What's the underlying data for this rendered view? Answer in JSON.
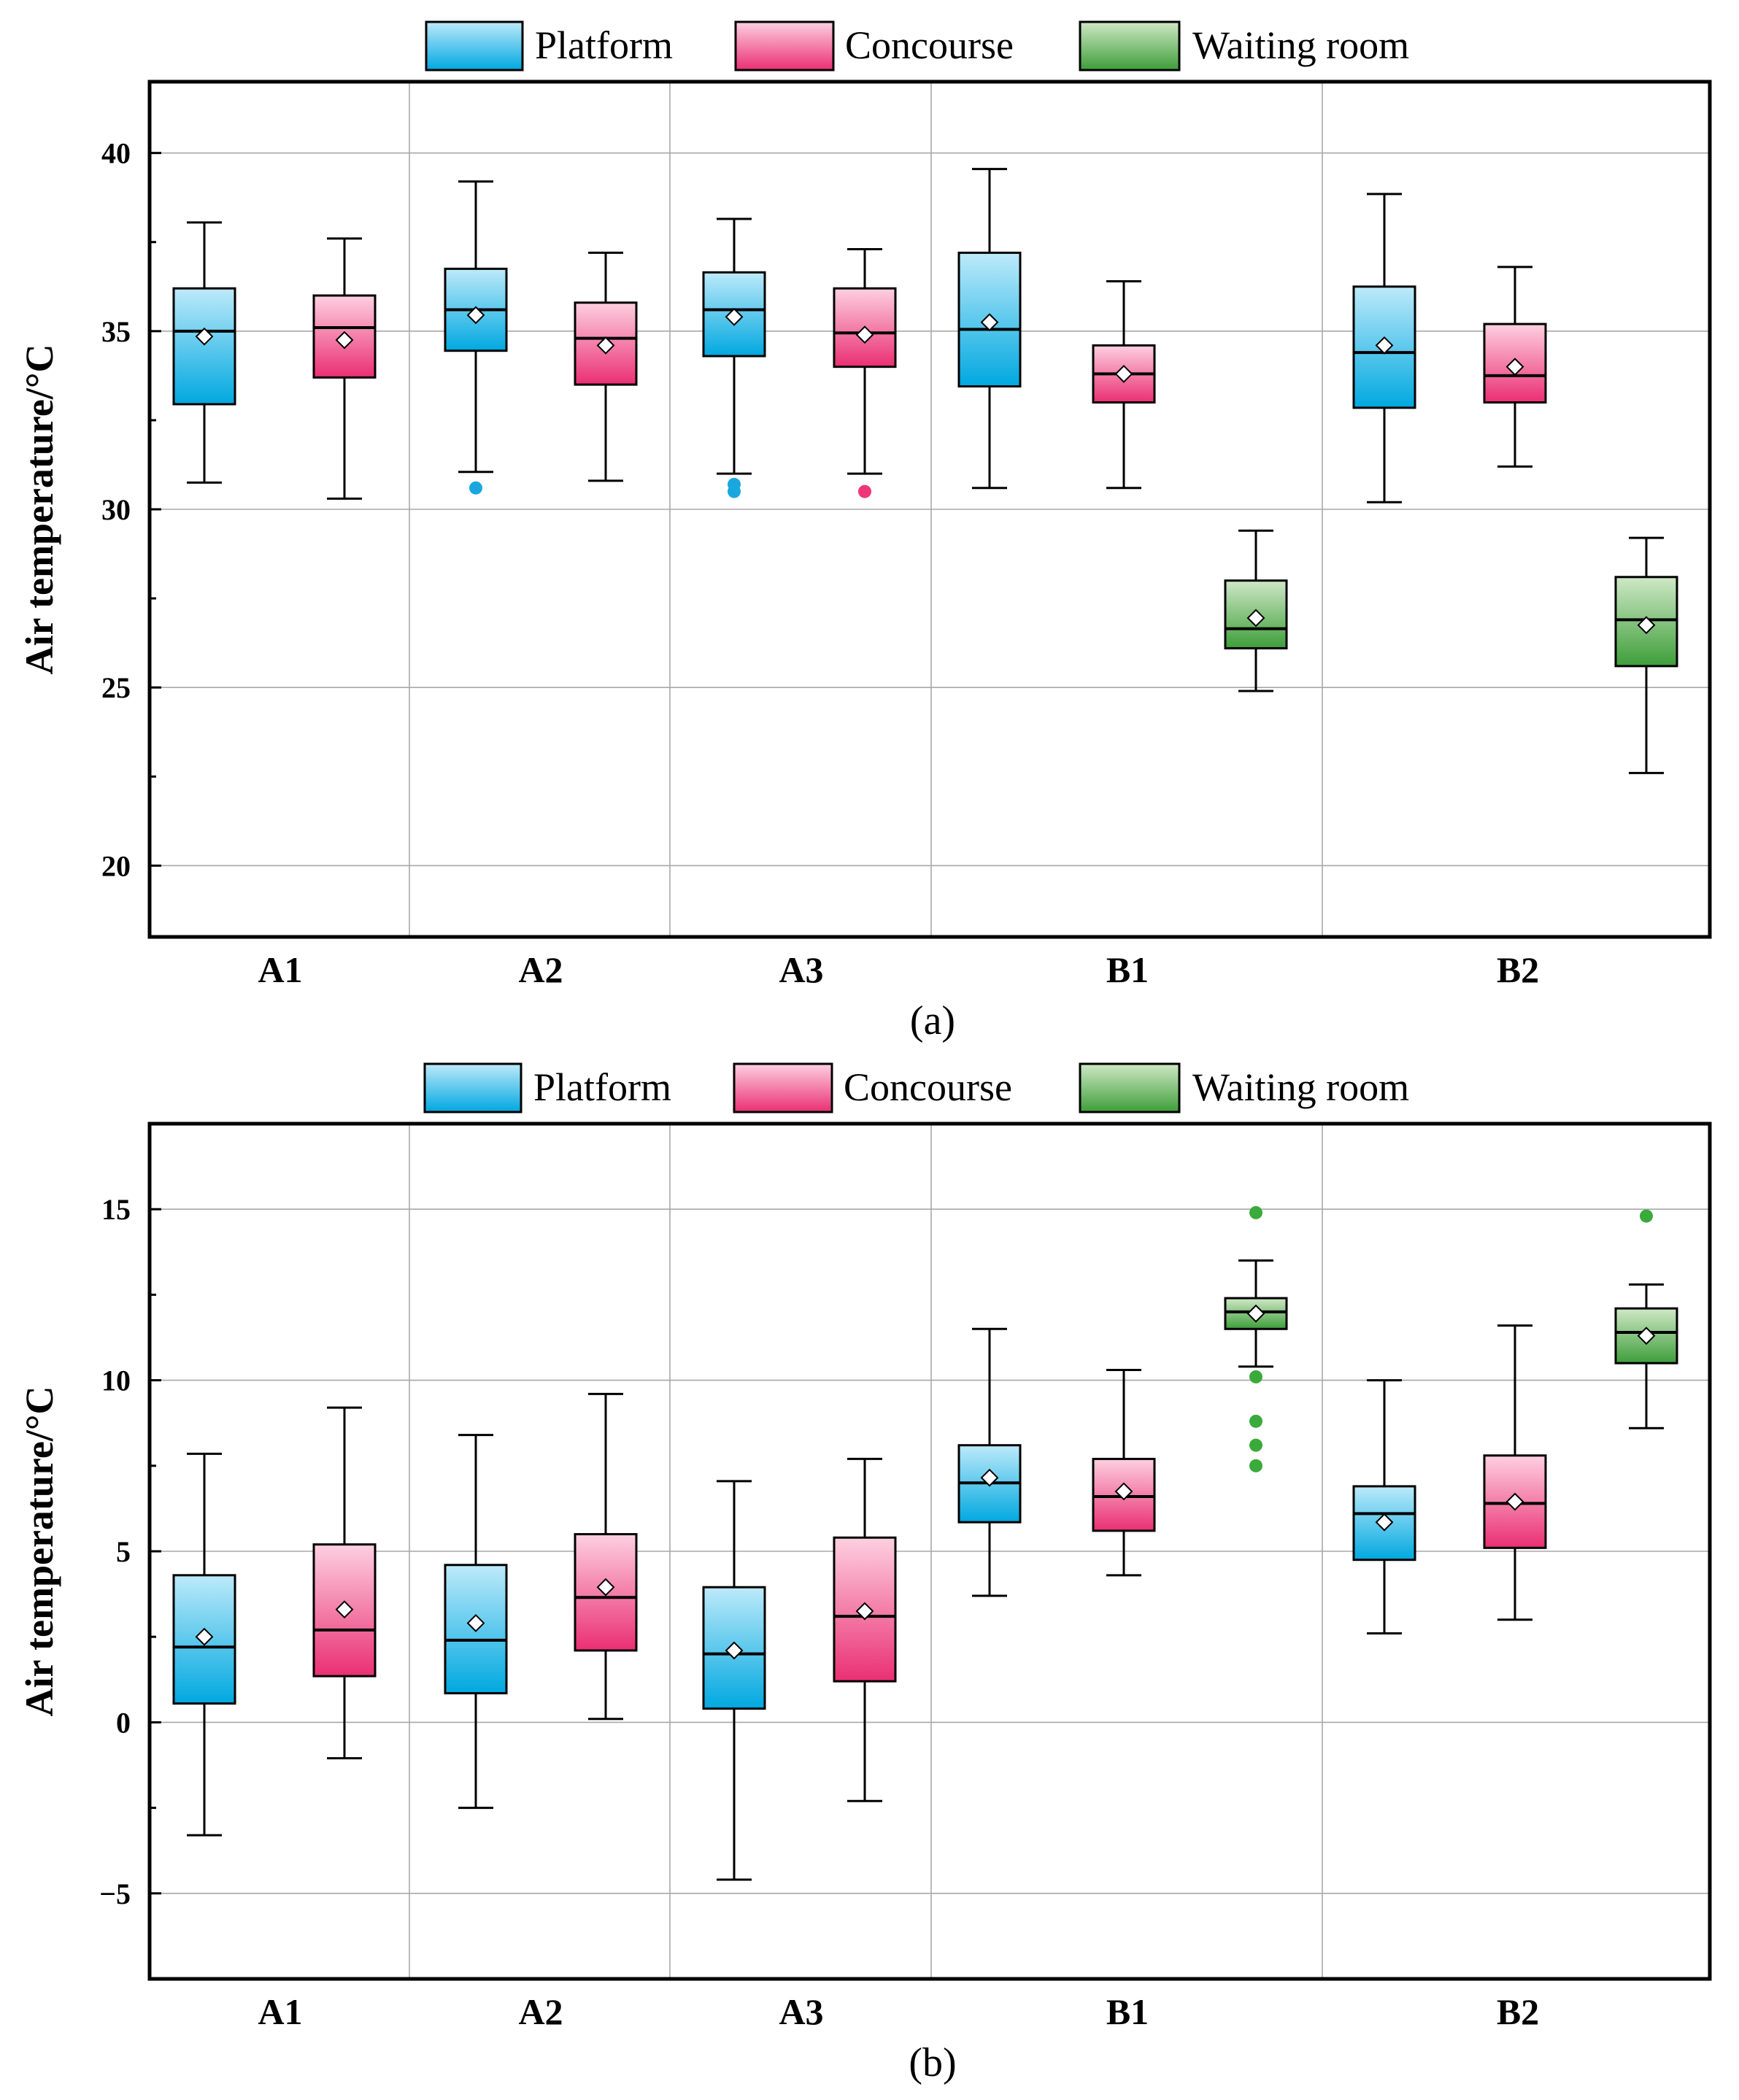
{
  "chart_data": [
    {
      "type": "box",
      "panel_label": "(a)",
      "ylabel": "Air temperature/°C",
      "ylim": [
        18,
        42
      ],
      "yticks": [
        20,
        25,
        30,
        35,
        40
      ],
      "ytick_labels": [
        "20",
        "25",
        "30",
        "35",
        "40"
      ],
      "grid": true,
      "legend_position": "top-center",
      "categories": [
        "A1",
        "A2",
        "A3",
        "B1",
        "B2"
      ],
      "series": [
        {
          "name": "Platform",
          "boxes": [
            {
              "category": "A1",
              "min": 30.75,
              "q1": 32.95,
              "median": 35.0,
              "q3": 36.2,
              "max": 38.05,
              "mean": 34.85,
              "outliers": []
            },
            {
              "category": "A2",
              "min": 31.05,
              "q1": 34.45,
              "median": 35.6,
              "q3": 36.75,
              "max": 39.2,
              "mean": 35.45,
              "outliers": [
                30.6
              ]
            },
            {
              "category": "A3",
              "min": 31.0,
              "q1": 34.3,
              "median": 35.6,
              "q3": 36.65,
              "max": 38.15,
              "mean": 35.4,
              "outliers": [
                30.5,
                30.7
              ]
            },
            {
              "category": "B1",
              "min": 30.6,
              "q1": 33.45,
              "median": 35.05,
              "q3": 37.2,
              "max": 39.55,
              "mean": 35.25,
              "outliers": []
            },
            {
              "category": "B2",
              "min": 30.2,
              "q1": 32.85,
              "median": 34.4,
              "q3": 36.25,
              "max": 38.85,
              "mean": 34.6,
              "outliers": []
            }
          ]
        },
        {
          "name": "Concourse",
          "boxes": [
            {
              "category": "A1",
              "min": 30.3,
              "q1": 33.7,
              "median": 35.1,
              "q3": 36.0,
              "max": 37.6,
              "mean": 34.75,
              "outliers": []
            },
            {
              "category": "A2",
              "min": 30.8,
              "q1": 33.5,
              "median": 34.8,
              "q3": 35.8,
              "max": 37.2,
              "mean": 34.6,
              "outliers": []
            },
            {
              "category": "A3",
              "min": 31.0,
              "q1": 34.0,
              "median": 34.95,
              "q3": 36.2,
              "max": 37.3,
              "mean": 34.9,
              "outliers": [
                30.5
              ]
            },
            {
              "category": "B1",
              "min": 30.6,
              "q1": 33.0,
              "median": 33.8,
              "q3": 34.6,
              "max": 36.4,
              "mean": 33.8,
              "outliers": []
            },
            {
              "category": "B2",
              "min": 31.2,
              "q1": 33.0,
              "median": 33.75,
              "q3": 35.2,
              "max": 36.8,
              "mean": 34.0,
              "outliers": []
            }
          ]
        },
        {
          "name": "Waiting room",
          "boxes": [
            {
              "category": "B1",
              "min": 24.9,
              "q1": 26.1,
              "median": 26.65,
              "q3": 28.0,
              "max": 29.4,
              "mean": 26.95,
              "outliers": []
            },
            {
              "category": "B2",
              "min": 22.6,
              "q1": 25.6,
              "median": 26.9,
              "q3": 28.1,
              "max": 29.2,
              "mean": 26.75,
              "outliers": []
            }
          ]
        }
      ]
    },
    {
      "type": "box",
      "panel_label": "(b)",
      "ylabel": "Air temperature/°C",
      "ylim": [
        -7.5,
        17.5
      ],
      "yticks": [
        -5,
        0,
        5,
        10,
        15
      ],
      "ytick_labels": [
        "−5",
        "0",
        "5",
        "10",
        "15"
      ],
      "grid": true,
      "legend_position": "top-center",
      "categories": [
        "A1",
        "A2",
        "A3",
        "B1",
        "B2"
      ],
      "series": [
        {
          "name": "Platform",
          "boxes": [
            {
              "category": "A1",
              "min": -3.3,
              "q1": 0.55,
              "median": 2.2,
              "q3": 4.3,
              "max": 7.85,
              "mean": 2.5,
              "outliers": []
            },
            {
              "category": "A2",
              "min": -2.5,
              "q1": 0.85,
              "median": 2.4,
              "q3": 4.6,
              "max": 8.4,
              "mean": 2.9,
              "outliers": []
            },
            {
              "category": "A3",
              "min": -4.6,
              "q1": 0.4,
              "median": 2.0,
              "q3": 3.95,
              "max": 7.05,
              "mean": 2.1,
              "outliers": []
            },
            {
              "category": "B1",
              "min": 3.7,
              "q1": 5.85,
              "median": 7.0,
              "q3": 8.1,
              "max": 11.5,
              "mean": 7.15,
              "outliers": []
            },
            {
              "category": "B2",
              "min": 2.6,
              "q1": 4.75,
              "median": 6.1,
              "q3": 6.9,
              "max": 10.0,
              "mean": 5.85,
              "outliers": []
            }
          ]
        },
        {
          "name": "Concourse",
          "boxes": [
            {
              "category": "A1",
              "min": -1.05,
              "q1": 1.35,
              "median": 2.7,
              "q3": 5.2,
              "max": 9.2,
              "mean": 3.3,
              "outliers": []
            },
            {
              "category": "A2",
              "min": 0.1,
              "q1": 2.1,
              "median": 3.65,
              "q3": 5.5,
              "max": 9.6,
              "mean": 3.95,
              "outliers": []
            },
            {
              "category": "A3",
              "min": -2.3,
              "q1": 1.2,
              "median": 3.1,
              "q3": 5.4,
              "max": 7.7,
              "mean": 3.25,
              "outliers": []
            },
            {
              "category": "B1",
              "min": 4.3,
              "q1": 5.6,
              "median": 6.6,
              "q3": 7.7,
              "max": 10.3,
              "mean": 6.75,
              "outliers": []
            },
            {
              "category": "B2",
              "min": 3.0,
              "q1": 5.1,
              "median": 6.4,
              "q3": 7.8,
              "max": 11.6,
              "mean": 6.45,
              "outliers": []
            }
          ]
        },
        {
          "name": "Waiting room",
          "boxes": [
            {
              "category": "B1",
              "min": 10.4,
              "q1": 11.5,
              "median": 12.0,
              "q3": 12.4,
              "max": 13.5,
              "mean": 11.95,
              "outliers": [
                14.9,
                10.1,
                8.8,
                8.1,
                7.5
              ]
            },
            {
              "category": "B2",
              "min": 8.6,
              "q1": 10.5,
              "median": 11.4,
              "q3": 12.1,
              "max": 12.8,
              "mean": 11.3,
              "outliers": [
                14.8
              ]
            }
          ]
        }
      ]
    }
  ],
  "colors": {
    "Platform": {
      "top": "#bdeafa",
      "bottom": "#00a8e0",
      "outlier": "#1aa7e0"
    },
    "Concourse": {
      "top": "#fdd0e0",
      "bottom": "#ea2f72",
      "outlier": "#ee3577"
    },
    "Waiting room": {
      "top": "#cfe8c6",
      "bottom": "#3e9e3a",
      "outlier": "#3aaa3a"
    },
    "grid": "#a8a8a8",
    "axis": "#000000"
  }
}
